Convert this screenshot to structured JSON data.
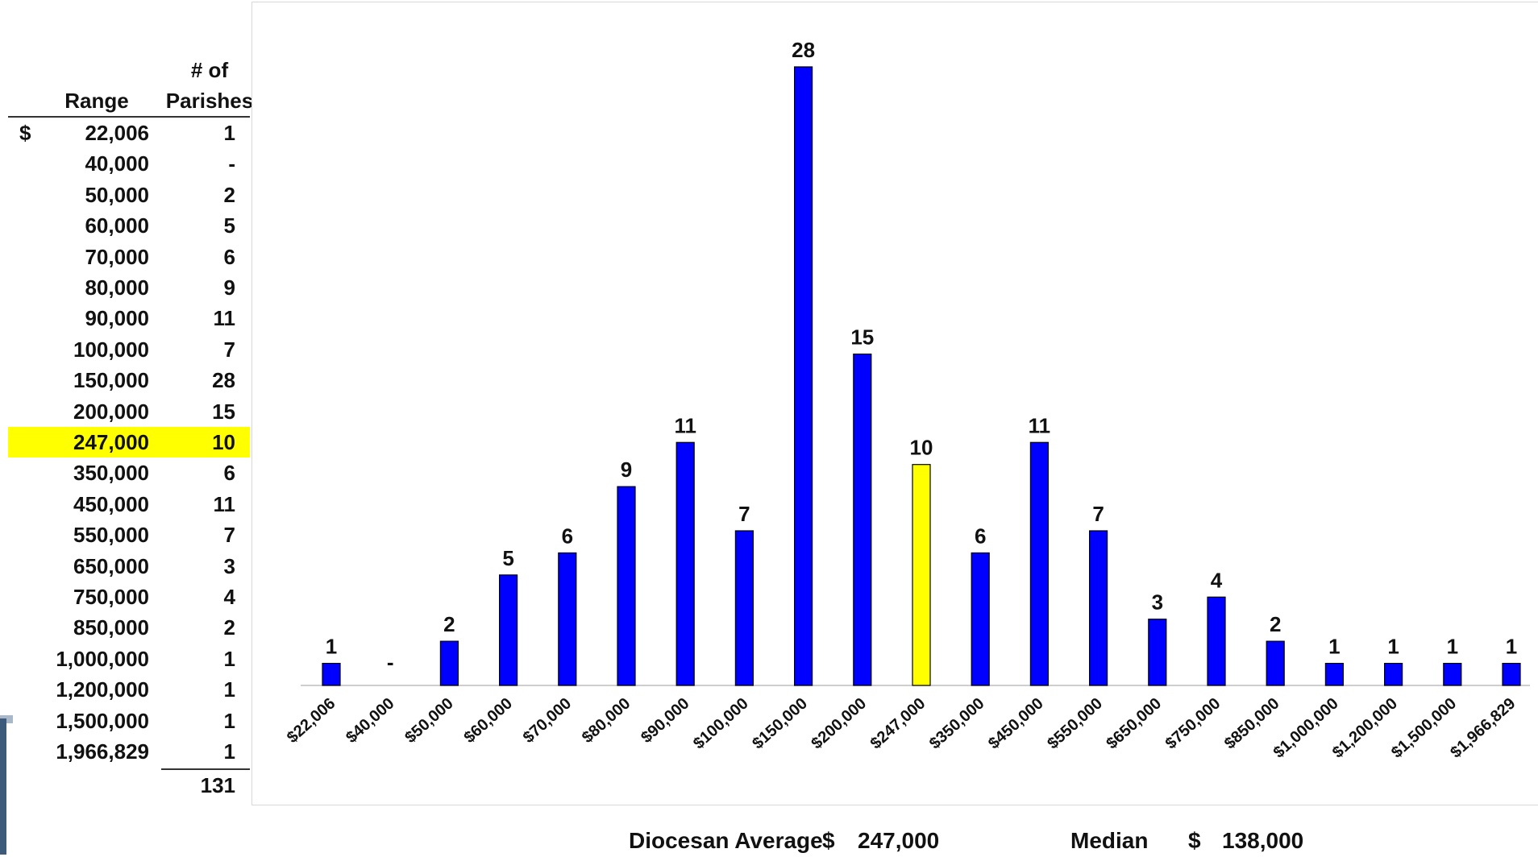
{
  "table": {
    "header_range": "Range",
    "header_count_line1": "# of",
    "header_count_line2": "Parishes",
    "currency_symbol": "$",
    "rows": [
      {
        "range": "22,006",
        "count": "1"
      },
      {
        "range": "40,000",
        "count": "-"
      },
      {
        "range": "50,000",
        "count": "2"
      },
      {
        "range": "60,000",
        "count": "5"
      },
      {
        "range": "70,000",
        "count": "6"
      },
      {
        "range": "80,000",
        "count": "9"
      },
      {
        "range": "90,000",
        "count": "11"
      },
      {
        "range": "100,000",
        "count": "7"
      },
      {
        "range": "150,000",
        "count": "28"
      },
      {
        "range": "200,000",
        "count": "15"
      },
      {
        "range": "247,000",
        "count": "10",
        "highlight": true
      },
      {
        "range": "350,000",
        "count": "6"
      },
      {
        "range": "450,000",
        "count": "11"
      },
      {
        "range": "550,000",
        "count": "7"
      },
      {
        "range": "650,000",
        "count": "3"
      },
      {
        "range": "750,000",
        "count": "4"
      },
      {
        "range": "850,000",
        "count": "2"
      },
      {
        "range": "1,000,000",
        "count": "1"
      },
      {
        "range": "1,200,000",
        "count": "1"
      },
      {
        "range": "1,500,000",
        "count": "1"
      },
      {
        "range": "1,966,829",
        "count": "1"
      }
    ],
    "total": "131",
    "highlight_color": "#ffff00"
  },
  "chart_data": {
    "type": "bar",
    "categories": [
      "$22,006",
      "$40,000",
      "$50,000",
      "$60,000",
      "$70,000",
      "$80,000",
      "$90,000",
      "$100,000",
      "$150,000",
      "$200,000",
      "$247,000",
      "$350,000",
      "$450,000",
      "$550,000",
      "$650,000",
      "$750,000",
      "$850,000",
      "$1,000,000",
      "$1,200,000",
      "$1,500,000",
      "$1,966,829"
    ],
    "values": [
      1,
      0,
      2,
      5,
      6,
      9,
      11,
      7,
      28,
      15,
      10,
      6,
      11,
      7,
      3,
      4,
      2,
      1,
      1,
      1,
      1
    ],
    "data_labels": [
      "1",
      "-",
      "2",
      "5",
      "6",
      "9",
      "11",
      "7",
      "28",
      "15",
      "10",
      "6",
      "11",
      "7",
      "3",
      "4",
      "2",
      "1",
      "1",
      "1",
      "1"
    ],
    "highlight_index": 10,
    "bar_color": "#0000ff",
    "highlight_color": "#ffff00",
    "title": "",
    "xlabel": "",
    "ylabel": "",
    "ylim": [
      0,
      28
    ],
    "grid": false,
    "legend": "none"
  },
  "footer": {
    "average_label": "Diocesan Average",
    "average_currency": "$",
    "average_value": "247,000",
    "median_label": "Median",
    "median_currency": "$",
    "median_value": "138,000"
  }
}
